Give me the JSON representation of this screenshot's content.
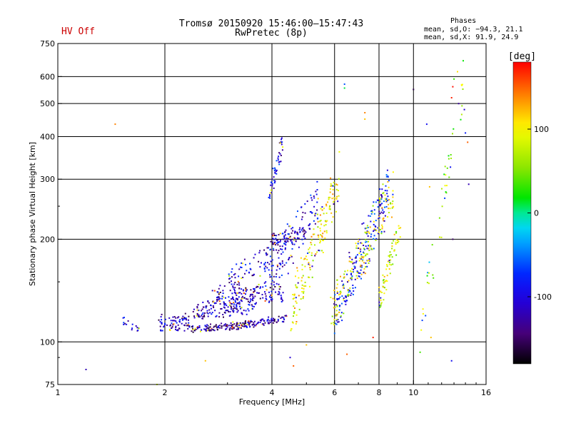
{
  "header": {
    "status_label": "HV Off",
    "status_color": "#cc0000",
    "title_line1": "Tromsø 20150920 15:46:00—15:47:43",
    "title_line2": "RwPretec (8p)"
  },
  "stats": {
    "heading": "Phases",
    "line_o": "mean, sd,O: −94.3, 21.1",
    "line_x": "mean, sd,X:  91.9, 24.9"
  },
  "chart_data": {
    "type": "scatter",
    "xlabel": "Frequency [MHz]",
    "ylabel": "Stationary phase Virtual Height [km]",
    "x_scale": "log",
    "y_scale": "log",
    "xlim": [
      1,
      16
    ],
    "ylim": [
      75,
      750
    ],
    "x_ticks": [
      1,
      2,
      4,
      6,
      8,
      10,
      16
    ],
    "y_ticks": [
      75,
      100,
      200,
      300,
      400,
      500,
      600,
      750
    ],
    "grid": true,
    "colorbar": {
      "label": "[deg]",
      "range": [
        -180,
        180
      ],
      "ticks": [
        100,
        0,
        -100
      ]
    },
    "clusters": [
      {
        "fmin": 1.52,
        "fmax": 1.72,
        "h1": 115,
        "h2": 108,
        "spread": 0.02,
        "n": 16,
        "phase": -110
      },
      {
        "fmin": 1.92,
        "fmax": 2.35,
        "h1": 113,
        "h2": 113,
        "spread": 0.035,
        "n": 80,
        "phase": -115
      },
      {
        "fmin": 2.35,
        "fmax": 3.4,
        "h1": 109,
        "h2": 112,
        "spread": 0.015,
        "n": 120,
        "phase": -125
      },
      {
        "fmin": 3.3,
        "fmax": 4.4,
        "h1": 112,
        "h2": 117,
        "spread": 0.015,
        "n": 90,
        "phase": -120
      },
      {
        "fmin": 2.4,
        "fmax": 3.6,
        "h1": 122,
        "h2": 131,
        "spread": 0.04,
        "n": 150,
        "phase": -115
      },
      {
        "fmin": 2.7,
        "fmax": 4.3,
        "h1": 135,
        "h2": 140,
        "spread": 0.04,
        "n": 130,
        "phase": -120
      },
      {
        "fmin": 3.0,
        "fmax": 4.0,
        "h1": 150,
        "h2": 180,
        "spread": 0.05,
        "n": 70,
        "phase": -110
      },
      {
        "fmin": 4.0,
        "fmax": 5.0,
        "h1": 200,
        "h2": 205,
        "spread": 0.03,
        "n": 70,
        "phase": -120
      },
      {
        "fmin": 3.8,
        "fmax": 5.4,
        "h1": 150,
        "h2": 260,
        "spread": 0.1,
        "n": 140,
        "phase": -100
      },
      {
        "fmin": 3.9,
        "fmax": 4.3,
        "h1": 260,
        "h2": 390,
        "spread": 0.05,
        "n": 50,
        "phase": -100
      },
      {
        "fmin": 4.5,
        "fmax": 6.2,
        "h1": 120,
        "h2": 300,
        "spread": 0.1,
        "n": 170,
        "phase": 95
      },
      {
        "fmin": 6.0,
        "fmax": 8.5,
        "h1": 120,
        "h2": 280,
        "spread": 0.1,
        "n": 200,
        "phase": -90
      },
      {
        "fmin": 5.8,
        "fmax": 8.8,
        "h1": 120,
        "h2": 270,
        "spread": 0.1,
        "n": 150,
        "phase": 90
      },
      {
        "fmin": 8.0,
        "fmax": 9.2,
        "h1": 130,
        "h2": 220,
        "spread": 0.06,
        "n": 70,
        "phase": 80
      },
      {
        "fmin": 10.4,
        "fmax": 14.0,
        "h1": 100,
        "h2": 620,
        "spread": 0.1,
        "n": 45,
        "phase": 60
      }
    ],
    "outliers": [
      [
        1.45,
        435,
        140
      ],
      [
        1.2,
        83,
        -120
      ],
      [
        2.6,
        88,
        120
      ],
      [
        1.9,
        75,
        80
      ],
      [
        6.4,
        570,
        -60
      ],
      [
        6.4,
        555,
        10
      ],
      [
        7.3,
        470,
        140
      ],
      [
        7.3,
        450,
        120
      ],
      [
        10.0,
        550,
        -160
      ],
      [
        10.9,
        435,
        -90
      ],
      [
        12.8,
        520,
        170
      ],
      [
        12.9,
        560,
        175
      ],
      [
        13.0,
        590,
        30
      ],
      [
        13.3,
        620,
        110
      ],
      [
        13.4,
        500,
        -130
      ],
      [
        13.9,
        480,
        -110
      ],
      [
        14.0,
        410,
        -80
      ],
      [
        14.2,
        385,
        150
      ],
      [
        14.3,
        290,
        -120
      ],
      [
        11.1,
        285,
        120
      ],
      [
        12.9,
        200,
        -150
      ],
      [
        12.8,
        88,
        -90
      ],
      [
        11.2,
        103,
        120
      ],
      [
        4.5,
        90,
        -110
      ],
      [
        4.6,
        85,
        150
      ],
      [
        5.0,
        98,
        120
      ],
      [
        6.5,
        92,
        150
      ],
      [
        7.7,
        103,
        170
      ]
    ]
  }
}
